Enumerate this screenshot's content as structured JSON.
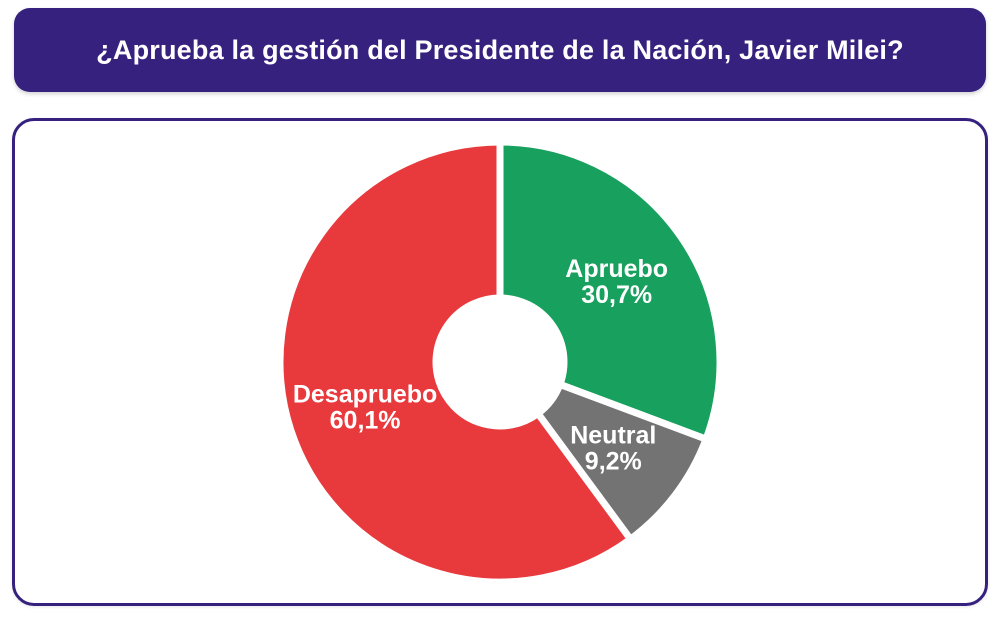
{
  "banner": {
    "title": "¿Aprueba la gestión del Presidente de la Nación, Javier Milei?"
  },
  "colors": {
    "banner_bg": "#37217e",
    "card_border": "#37217e",
    "label_text": "#ffffff",
    "background": "#ffffff"
  },
  "chart_data": {
    "type": "pie",
    "donut": true,
    "title": "¿Aprueba la gestión del Presidente de la Nación, Javier Milei?",
    "start_angle_deg": 0,
    "direction": "clockwise",
    "legend_position": "none",
    "labels_on_slices": true,
    "slices": [
      {
        "label": "Apruebo",
        "value": 30.7,
        "value_label": "30,7%",
        "color": "#18a05e"
      },
      {
        "label": "Neutral",
        "value": 9.2,
        "value_label": "9,2%",
        "color": "#737373"
      },
      {
        "label": "Desapruebo",
        "value": 60.1,
        "value_label": "60,1%",
        "color": "#e8393d"
      }
    ]
  }
}
